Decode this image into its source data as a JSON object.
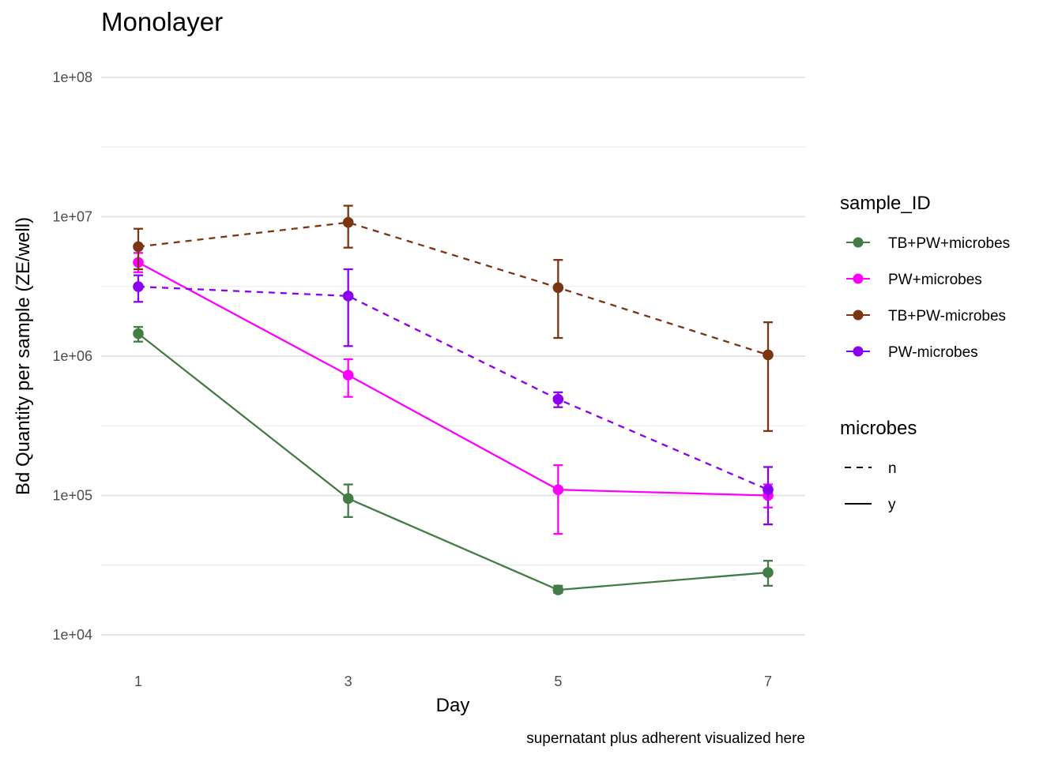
{
  "chart_data": {
    "type": "line",
    "title": "Monolayer",
    "xlabel": "Day",
    "ylabel": "Bd Quantity per sample (ZE/well)",
    "caption": "supernatant plus adherent visualized here",
    "x": [
      1,
      3,
      5,
      7
    ],
    "x_ticks": [
      "1",
      "3",
      "5",
      "7"
    ],
    "y_scale": "log10",
    "ylim": [
      7000,
      150000000
    ],
    "y_ticks": [
      {
        "value": 10000,
        "label": "1e+04"
      },
      {
        "value": 100000,
        "label": "1e+05"
      },
      {
        "value": 1000000,
        "label": "1e+06"
      },
      {
        "value": 10000000,
        "label": "1e+07"
      },
      {
        "value": 100000000,
        "label": "1e+08"
      }
    ],
    "grid": true,
    "legend_position": "right",
    "legends": [
      {
        "title": "sample_ID",
        "entries": [
          {
            "label": "TB+PW+microbes",
            "color": "#437c45"
          },
          {
            "label": "PW+microbes",
            "color": "#ff00ff"
          },
          {
            "label": "TB+PW-microbes",
            "color": "#7b3510"
          },
          {
            "label": "PW-microbes",
            "color": "#8b00f0"
          }
        ]
      },
      {
        "title": "microbes",
        "entries": [
          {
            "label": "n",
            "linetype": "dashed"
          },
          {
            "label": "y",
            "linetype": "solid"
          }
        ]
      }
    ],
    "series": [
      {
        "name": "TB+PW+microbes",
        "color": "#437c45",
        "linetype": "solid",
        "values": [
          1450000,
          95000,
          21000,
          28000
        ],
        "error_low": [
          1270000,
          70000,
          20000,
          22500
        ],
        "error_high": [
          1620000,
          120000,
          22500,
          34000
        ]
      },
      {
        "name": "PW+microbes",
        "color": "#ff00ff",
        "linetype": "solid",
        "values": [
          4700000,
          730000,
          110000,
          100000
        ],
        "error_low": [
          4000000,
          510000,
          53000,
          82000
        ],
        "error_high": [
          5500000,
          950000,
          165000,
          120000
        ]
      },
      {
        "name": "TB+PW-microbes",
        "color": "#7b3510",
        "linetype": "dashed",
        "values": [
          6100000,
          9100000,
          3100000,
          1020000
        ],
        "error_low": [
          4200000,
          6000000,
          1350000,
          290000
        ],
        "error_high": [
          8200000,
          12000000,
          4900000,
          1750000
        ]
      },
      {
        "name": "PW-microbes",
        "color": "#8b00f0",
        "linetype": "dashed",
        "values": [
          3150000,
          2700000,
          490000,
          110000
        ],
        "error_low": [
          2450000,
          1180000,
          430000,
          62000
        ],
        "error_high": [
          3800000,
          4200000,
          550000,
          160000
        ]
      }
    ]
  }
}
